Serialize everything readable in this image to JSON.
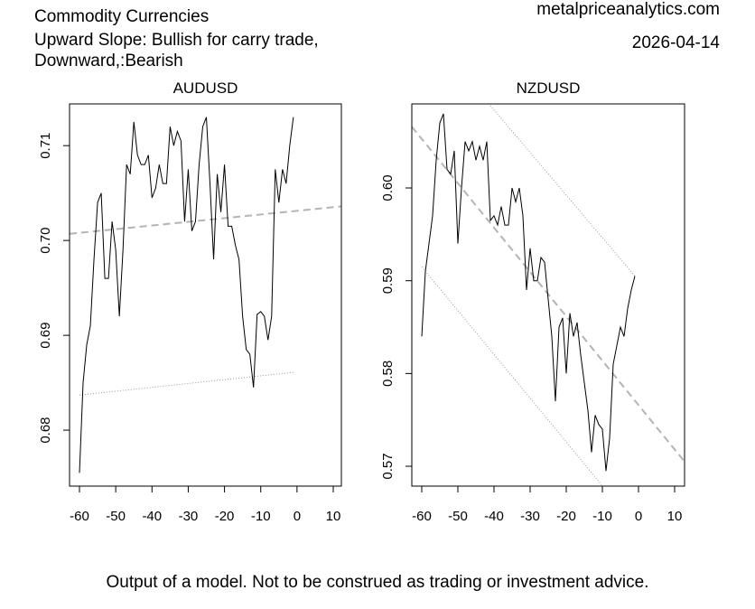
{
  "header": {
    "title_lines": [
      "Commodity Currencies",
      "Upward Slope: Bullish for carry trade,",
      "Downward,:Bearish"
    ],
    "site": "metalpriceanalytics.com",
    "date": "2026-04-14"
  },
  "footer": "Output of a model. Not to be construed as trading or investment advice.",
  "chart_data": [
    {
      "type": "line",
      "title": "AUDUSD",
      "color": "#000000",
      "x": [
        -60,
        -59,
        -58,
        -57,
        -56,
        -55,
        -54,
        -53,
        -52,
        -51,
        -50,
        -49,
        -48,
        -47,
        -46,
        -45,
        -44,
        -43,
        -42,
        -41,
        -40,
        -39,
        -38,
        -37,
        -36,
        -35,
        -34,
        -33,
        -32,
        -31,
        -30,
        -29,
        -28,
        -27,
        -26,
        -25,
        -24,
        -23,
        -22,
        -21,
        -20,
        -19,
        -18,
        -17,
        -16,
        -15,
        -14,
        -13,
        -12,
        -11,
        -10,
        -9,
        -8,
        -7,
        -6,
        -5,
        -4,
        -3,
        -2,
        -1
      ],
      "values": [
        0.6755,
        0.685,
        0.689,
        0.691,
        0.698,
        0.704,
        0.705,
        0.696,
        0.696,
        0.702,
        0.699,
        0.692,
        0.699,
        0.708,
        0.707,
        0.7125,
        0.709,
        0.708,
        0.708,
        0.709,
        0.7045,
        0.7055,
        0.708,
        0.706,
        0.706,
        0.712,
        0.71,
        0.7115,
        0.7105,
        0.702,
        0.7075,
        0.701,
        0.702,
        0.708,
        0.712,
        0.713,
        0.706,
        0.698,
        0.707,
        0.703,
        0.708,
        0.7015,
        0.7015,
        0.6995,
        0.698,
        0.692,
        0.6885,
        0.688,
        0.6845,
        0.6922,
        0.6925,
        0.692,
        0.6895,
        0.692,
        0.7075,
        0.704,
        0.7075,
        0.706,
        0.71,
        0.713
      ],
      "lines": [
        {
          "x": [
            -62.74,
            12.24
          ],
          "values": [
            0.7007,
            0.7036
          ],
          "style": "dashed",
          "color": "#b4b4b4"
        },
        {
          "x": [
            -60,
            -1
          ],
          "values": [
            0.6837,
            0.6861
          ],
          "style": "dotted",
          "color": "#9a9a9a"
        }
      ],
      "xlim": [
        -62.74,
        12.24
      ],
      "ylim": [
        0.6741,
        0.7144
      ],
      "xticks": [
        -60,
        -50,
        -40,
        -30,
        -20,
        -10,
        0,
        10
      ],
      "yticks": [
        0.68,
        0.69,
        {
          "value": 0.7,
          "label": "0.70"
        },
        0.71
      ]
    },
    {
      "type": "line",
      "title": "NZDUSD",
      "color": "#000000",
      "x": [
        -60,
        -59,
        -58,
        -57,
        -56,
        -55,
        -54,
        -53,
        -52,
        -51,
        -50,
        -49,
        -48,
        -47,
        -46,
        -45,
        -44,
        -43,
        -42,
        -41,
        -40,
        -39,
        -38,
        -37,
        -36,
        -35,
        -34,
        -33,
        -32,
        -31,
        -30,
        -29,
        -28,
        -27,
        -26,
        -25,
        -24,
        -23,
        -22,
        -21,
        -20,
        -19,
        -18,
        -17,
        -16,
        -15,
        -14,
        -13,
        -12,
        -11,
        -10,
        -9,
        -8,
        -7,
        -6,
        -5,
        -4,
        -3,
        -2,
        -1
      ],
      "values": [
        0.584,
        0.591,
        0.594,
        0.597,
        0.603,
        0.607,
        0.608,
        0.602,
        0.6015,
        0.604,
        0.594,
        0.6,
        0.605,
        0.604,
        0.605,
        0.603,
        0.6045,
        0.603,
        0.605,
        0.5965,
        0.597,
        0.596,
        0.598,
        0.596,
        0.596,
        0.6,
        0.5985,
        0.6,
        0.597,
        0.589,
        0.5935,
        0.59,
        0.59,
        0.5925,
        0.592,
        0.588,
        0.584,
        0.577,
        0.585,
        0.586,
        0.58,
        0.5865,
        0.584,
        0.5855,
        0.582,
        0.579,
        0.576,
        0.5715,
        0.5755,
        0.5745,
        0.574,
        0.5695,
        0.573,
        0.581,
        0.583,
        0.585,
        0.584,
        0.587,
        0.589,
        0.5905
      ],
      "lines": [
        {
          "x": [
            -62.75,
            12.75
          ],
          "values": [
            0.6066,
            0.5705
          ],
          "style": "dashed",
          "color": "#b4b4b4"
        },
        {
          "x": [
            -41.5,
            -1
          ],
          "values": [
            0.6091,
            0.5905
          ],
          "style": "dotted",
          "color": "#9a9a9a"
        },
        {
          "x": [
            -60,
            -10
          ],
          "values": [
            0.5915,
            0.5679
          ],
          "style": "dotted",
          "color": "#9a9a9a"
        }
      ],
      "xlim": [
        -62.75,
        12.75
      ],
      "ylim": [
        0.56786,
        0.60906
      ],
      "xticks": [
        -60,
        -50,
        -40,
        -30,
        -20,
        -10,
        0,
        10
      ],
      "yticks": [
        0.57,
        0.58,
        0.59,
        {
          "value": 0.6,
          "label": "0.60"
        }
      ]
    }
  ]
}
